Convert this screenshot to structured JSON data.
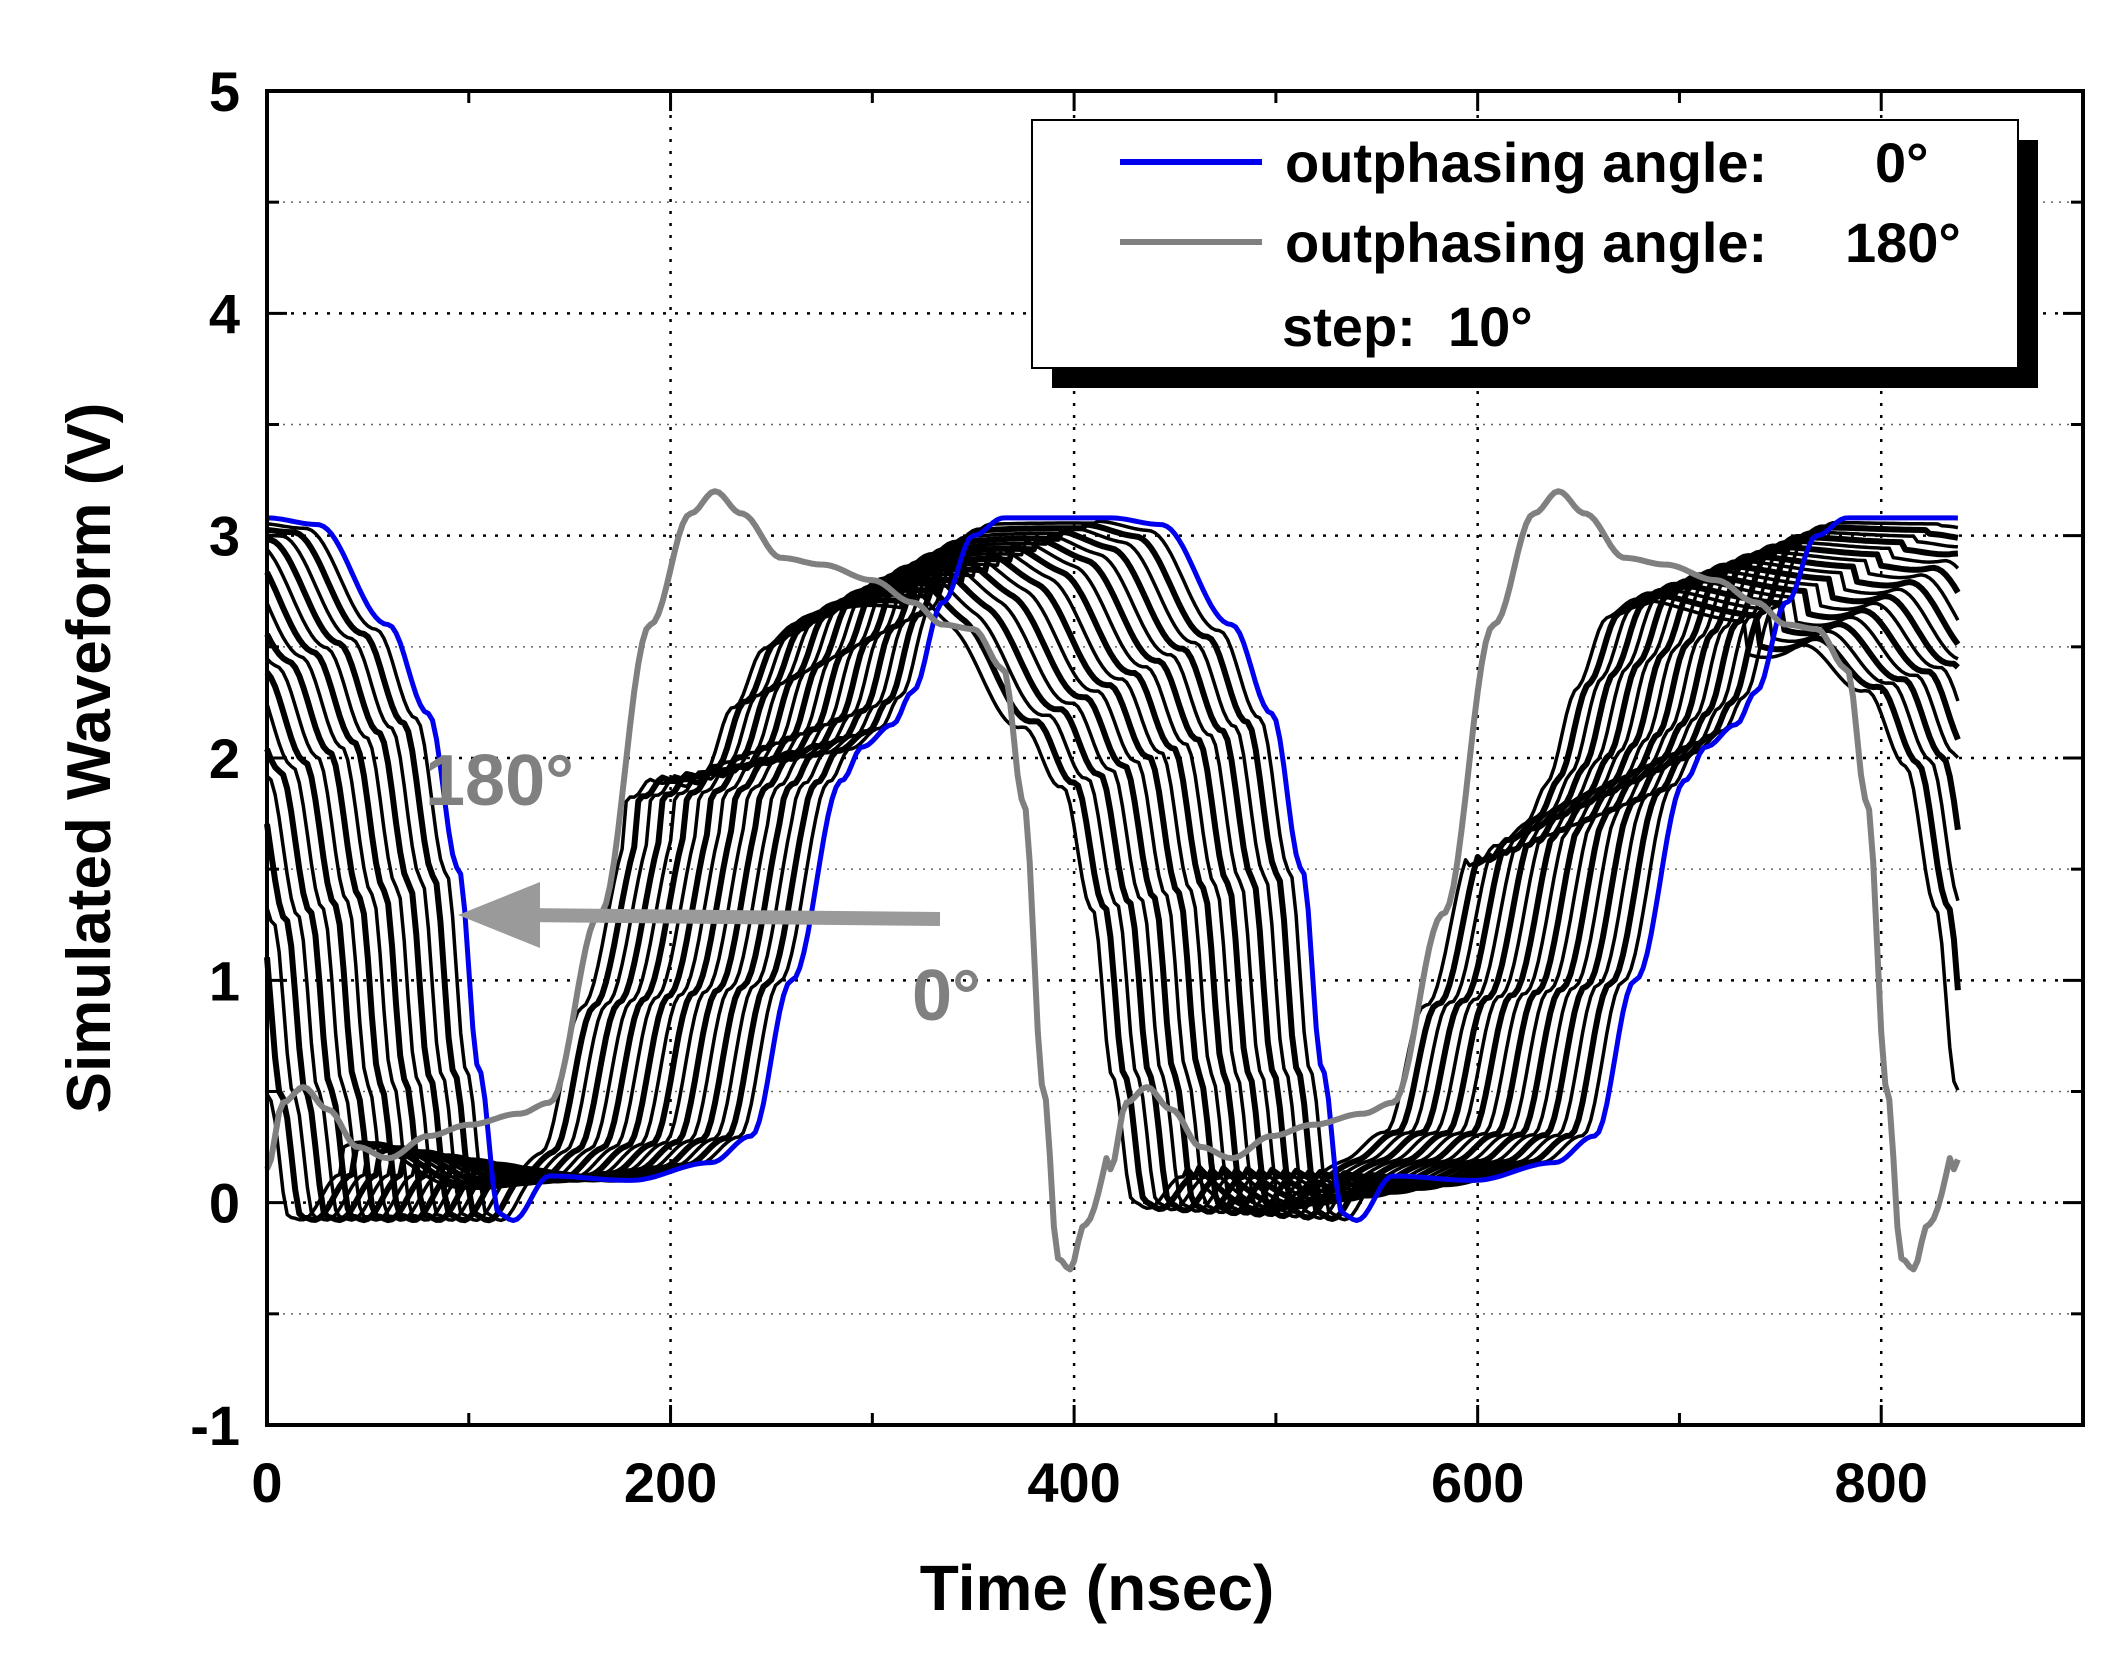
{
  "chart_data": {
    "type": "line",
    "xlabel": "Time (nsec)",
    "ylabel": "Simulated Waveform (V)",
    "xlim": [
      0,
      900
    ],
    "ylim": [
      -1,
      5
    ],
    "x_ticks": [
      "0",
      "200",
      "400",
      "600",
      "800"
    ],
    "y_ticks": [
      "-1",
      "0",
      "1",
      "2",
      "3",
      "4",
      "5"
    ],
    "grid": true,
    "legend_position": "top-right",
    "legend": {
      "series_0_label": "outphasing angle:",
      "series_0_value": "0°",
      "series_180_label": "outphasing angle:",
      "series_180_value": "180°",
      "step_label": "step:",
      "step_value": "10°"
    },
    "annotations": {
      "start": "0°",
      "end": "180°"
    },
    "colors": {
      "series_0": "#0000ee",
      "series_180": "#808080",
      "intermediate": "#000000",
      "arrow": "#9a9a9a",
      "annotation": "#808080"
    },
    "period_ns": 418,
    "x_end_ns": 838,
    "angle_step_deg": 10,
    "series_count": 19,
    "series": [
      {
        "name": "outphasing angle 0°",
        "x": [
          0,
          25,
          60,
          80,
          95,
          105,
          115,
          122,
          140,
          180,
          220,
          240,
          260,
          285,
          295,
          310,
          320,
          335,
          350,
          365,
          400,
          420
        ],
        "values": [
          3.08,
          3.05,
          2.6,
          2.2,
          1.5,
          0.6,
          -0.05,
          -0.08,
          0.12,
          0.1,
          0.18,
          0.3,
          1.0,
          1.9,
          2.05,
          2.15,
          2.3,
          2.7,
          3.0,
          3.08,
          3.08,
          3.08
        ]
      },
      {
        "name": "outphasing angle 180°",
        "x": [
          0,
          8,
          18,
          30,
          45,
          60,
          80,
          100,
          125,
          140,
          165,
          190,
          210,
          222,
          235,
          255,
          275,
          300,
          320,
          335,
          350,
          365,
          375,
          385,
          392,
          398,
          405,
          425,
          437,
          450,
          460,
          418
        ],
        "values": [
          0.15,
          0.45,
          0.52,
          0.42,
          0.25,
          0.2,
          0.3,
          0.35,
          0.4,
          0.45,
          1.3,
          2.6,
          3.1,
          3.2,
          3.1,
          2.9,
          2.87,
          2.8,
          2.7,
          2.6,
          2.58,
          2.4,
          1.8,
          0.5,
          -0.25,
          -0.3,
          -0.1,
          0.42,
          0.52,
          0.45,
          0.3,
          0.15
        ]
      }
    ]
  }
}
